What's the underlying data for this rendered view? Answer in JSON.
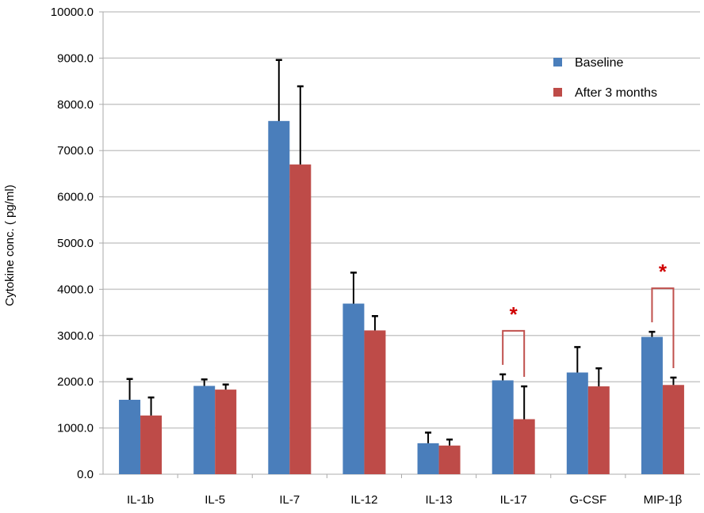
{
  "chart_data": {
    "type": "bar",
    "title": "",
    "xlabel": "",
    "ylabel": "Cytokine conc. ( pg/ml)",
    "ylim": [
      0,
      10000
    ],
    "yticks": [
      "0.0",
      "1000.0",
      "2000.0",
      "3000.0",
      "4000.0",
      "5000.0",
      "6000.0",
      "7000.0",
      "8000.0",
      "9000.0",
      "10000.0"
    ],
    "grid": true,
    "legend_position": "top-right",
    "categories": [
      "IL-1b",
      "IL-5",
      "IL-7",
      "IL-12",
      "IL-13",
      "IL-17",
      "G-CSF",
      "MIP-1β"
    ],
    "series": [
      {
        "name": "Baseline",
        "color": "#4a7ebb",
        "values": [
          1610,
          1910,
          7640,
          3690,
          670,
          2030,
          2200,
          2970
        ],
        "error": [
          450,
          140,
          1320,
          670,
          230,
          130,
          550,
          110
        ]
      },
      {
        "name": "After 3 months",
        "color": "#be4b48",
        "values": [
          1270,
          1830,
          6700,
          3110,
          620,
          1190,
          1900,
          1930
        ],
        "error": [
          390,
          110,
          1690,
          310,
          130,
          710,
          390,
          160
        ]
      }
    ],
    "significance": [
      {
        "category": "IL-17",
        "label": "*"
      },
      {
        "category": "MIP-1β",
        "label": "*"
      }
    ]
  }
}
